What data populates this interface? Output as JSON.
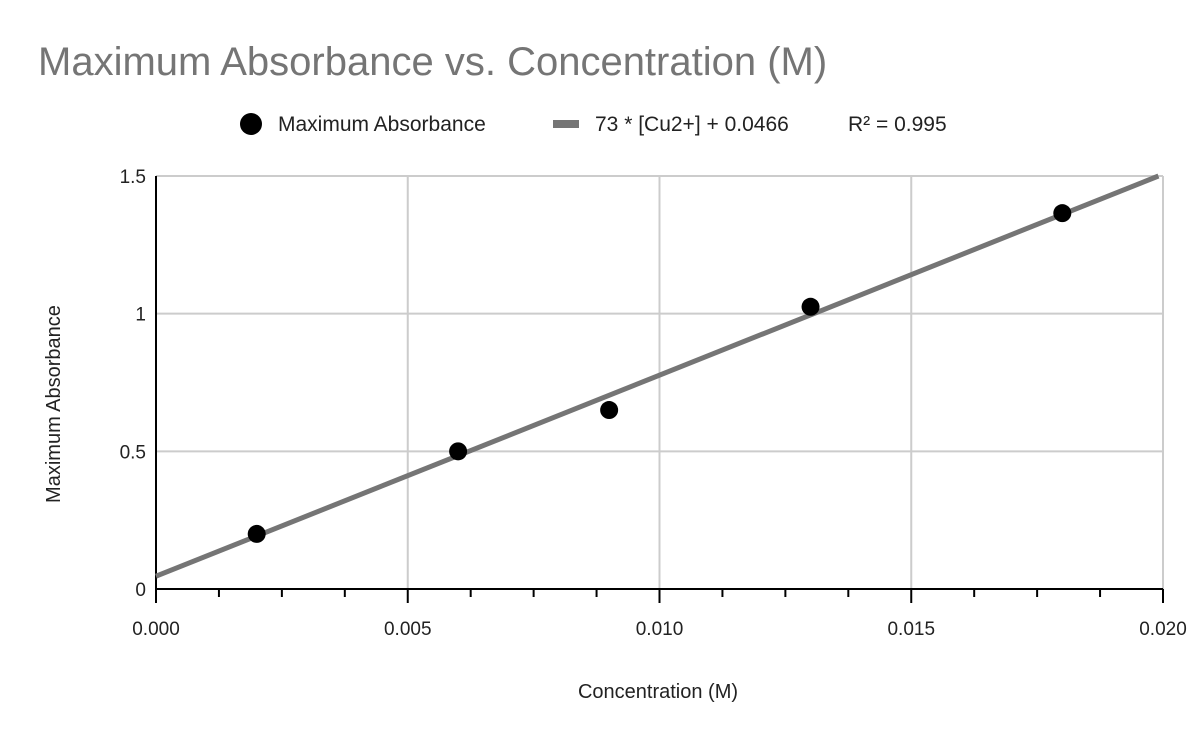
{
  "colors": {
    "points": "#000000",
    "trendline": "#757575",
    "grid": "#cccccc",
    "axis": "#000000",
    "title": "#757575"
  },
  "chart_data": {
    "type": "scatter",
    "title": "Maximum Absorbance vs. Concentration (M)",
    "xlabel": "Concentration (M)",
    "ylabel": "Maximum Absorbance",
    "xlim": [
      0,
      0.02
    ],
    "ylim": [
      0,
      1.5
    ],
    "x_ticks": [
      0,
      0.005,
      0.01,
      0.015,
      0.02
    ],
    "x_tick_labels": [
      "0.000",
      "0.005",
      "0.010",
      "0.015",
      "0.020"
    ],
    "y_ticks": [
      0,
      0.5,
      1,
      1.5
    ],
    "y_tick_labels": [
      "0",
      "0.5",
      "1",
      "1.5"
    ],
    "grid": true,
    "legend_position": "top",
    "series": [
      {
        "name": "Maximum Absorbance",
        "x": [
          0.002,
          0.006,
          0.009,
          0.013,
          0.018
        ],
        "y": [
          0.2,
          0.5,
          0.65,
          1.025,
          1.365
        ]
      }
    ],
    "trendline": {
      "label": "73 * [Cu2+] + 0.0466",
      "r2_label": "R² = 0.995",
      "slope": 73,
      "intercept": 0.0466
    }
  }
}
